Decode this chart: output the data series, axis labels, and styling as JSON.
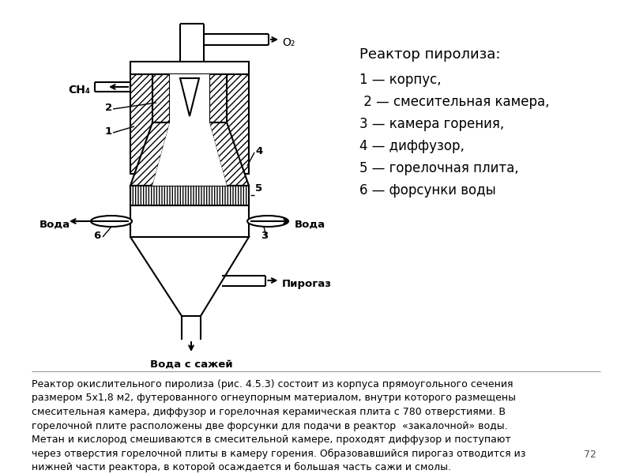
{
  "title_text": "Реактор пиролиза:",
  "legend_lines": [
    "1 — корпус,",
    " 2 — смесительная камера,",
    "3 — камера горения,",
    "4 — диффузор,",
    "5 — горелочная плита,",
    "6 — форсунки воды"
  ],
  "bottom_text": "Реактор окислительного пиролиза (рис. 4.5.3) состоит из корпуса прямоугольного сечения\nразмером 5х1,8 м2, футерованного огнеупорным материалом, внутри которого размещены\nсмесительная камера, диффузор и горелочная керамическая плита с 780 отверстиями. В\nгорелочной плите расположены две форсунки для подачи в реактор  «закалочной» воды.\nМетан и кислород смешиваются в смесительной камере, проходят диффузор и поступают\nчерез отверстия горелочной плиты в камеру горения. Образовавшийся пирогаз отводится из\nнижней части реактора, в которой осаждается и большая часть сажи и смолы.",
  "page_number": "72"
}
